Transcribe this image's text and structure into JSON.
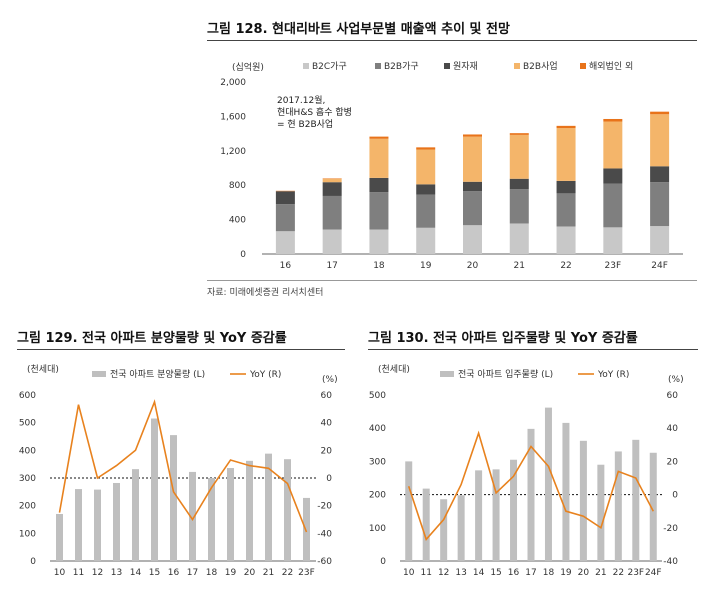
{
  "figures": {
    "fig128": {
      "title": "그림 128. 현대리바트 사업부문별 매출액 추이 및 전망",
      "source": "자료: 미래에셋증권 리서치센터"
    },
    "fig129": {
      "title": "그림 129. 전국 아파트 분양물량 및 YoY 증감률"
    },
    "fig130": {
      "title": "그림 130. 전국 아파트 입주물량 및 YoY 증감률"
    }
  },
  "chart_data": [
    {
      "type": "bar",
      "stacked": true,
      "ylabel": "(십억원)",
      "ylim": [
        0,
        2000
      ],
      "yticks": [
        0,
        400,
        800,
        1200,
        1600,
        2000
      ],
      "yticklabels": [
        "0",
        "400",
        "800",
        "1,200",
        "1,600",
        "2,000"
      ],
      "categories": [
        "16",
        "17",
        "18",
        "19",
        "20",
        "21",
        "22",
        "23F",
        "24F"
      ],
      "series": [
        {
          "name": "B2C가구",
          "color": "#c8c8c8",
          "values": [
            265,
            285,
            285,
            305,
            335,
            355,
            320,
            310,
            325
          ]
        },
        {
          "name": "B2B가구",
          "color": "#7f7f7f",
          "values": [
            315,
            390,
            435,
            385,
            395,
            400,
            385,
            510,
            510
          ]
        },
        {
          "name": "원자재",
          "color": "#4a4a4a",
          "values": [
            150,
            160,
            165,
            120,
            110,
            120,
            145,
            175,
            185
          ]
        },
        {
          "name": "B2B사업",
          "color": "#f4b56a",
          "values": [
            0,
            40,
            455,
            405,
            525,
            510,
            615,
            545,
            605
          ]
        },
        {
          "name": "해외법인 외",
          "color": "#e8731a",
          "values": [
            5,
            5,
            25,
            25,
            25,
            20,
            25,
            30,
            30
          ]
        }
      ],
      "annotation": [
        "2017.12월,",
        "현대H&S 흡수 합병",
        "= 현 B2B사업"
      ],
      "legend": "top"
    },
    {
      "type": "bar",
      "ylabel": "(천세대)",
      "y2label": "(%)",
      "ylim": [
        0,
        600
      ],
      "y2lim": [
        -60,
        60
      ],
      "yticks": [
        0,
        100,
        200,
        300,
        400,
        500,
        600
      ],
      "y2ticks": [
        -60,
        -40,
        -20,
        0,
        20,
        40,
        60
      ],
      "categories": [
        "10",
        "11",
        "12",
        "13",
        "14",
        "15",
        "16",
        "17",
        "18",
        "19",
        "20",
        "21",
        "22",
        "23F"
      ],
      "series": [
        {
          "name": "전국 아파트 분양물량 (L)",
          "color": "#bfbfbf",
          "axis": "left",
          "values": [
            170,
            260,
            258,
            282,
            332,
            515,
            455,
            322,
            300,
            336,
            362,
            388,
            368,
            228
          ]
        },
        {
          "name": "YoY (R)",
          "color": "#e8821e",
          "axis": "right",
          "type": "line",
          "values": [
            -25,
            53,
            0,
            9,
            20,
            55,
            -10,
            -30,
            -7,
            13,
            9,
            7,
            -4,
            -39
          ]
        }
      ],
      "reference_line": 0,
      "legend": "top"
    },
    {
      "type": "bar",
      "ylabel": "(천세대)",
      "y2label": "(%)",
      "ylim": [
        0,
        500
      ],
      "y2lim": [
        -40,
        60
      ],
      "yticks": [
        0,
        100,
        200,
        300,
        400,
        500
      ],
      "y2ticks": [
        -40,
        -20,
        0,
        20,
        40,
        60
      ],
      "categories": [
        "10",
        "11",
        "12",
        "13",
        "14",
        "15",
        "16",
        "17",
        "18",
        "19",
        "20",
        "21",
        "22",
        "23F",
        "24F"
      ],
      "series": [
        {
          "name": "전국 아파트 입주물량 (L)",
          "color": "#bfbfbf",
          "axis": "left",
          "values": [
            300,
            218,
            186,
            198,
            273,
            276,
            305,
            398,
            462,
            416,
            362,
            290,
            330,
            365,
            326
          ]
        },
        {
          "name": "YoY (R)",
          "color": "#e8821e",
          "axis": "right",
          "type": "line",
          "values": [
            5,
            -27,
            -15,
            6,
            37,
            1,
            11,
            29,
            17,
            -10,
            -13,
            -20,
            14,
            10,
            -10
          ]
        }
      ],
      "reference_line": 0,
      "legend": "top"
    }
  ]
}
